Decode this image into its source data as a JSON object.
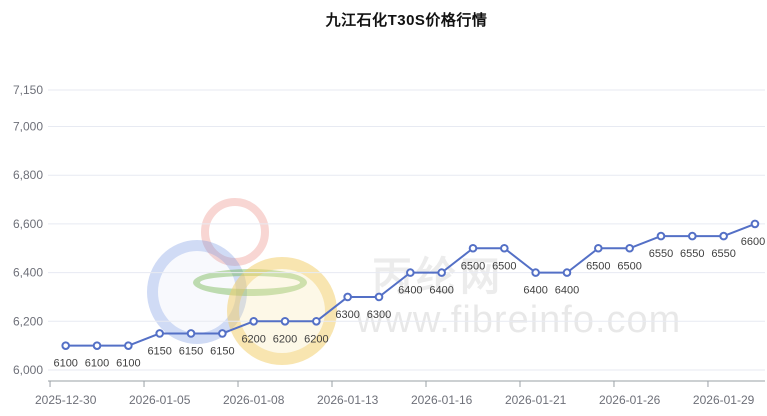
{
  "chart_data": {
    "type": "line",
    "title": "九江石化T30S价格行情",
    "values": [
      6100,
      6100,
      6100,
      6150,
      6150,
      6150,
      6200,
      6200,
      6200,
      6300,
      6300,
      6400,
      6400,
      6500,
      6500,
      6400,
      6400,
      6500,
      6500,
      6550,
      6550,
      6550,
      6600
    ],
    "point_labels_visible": true,
    "x_tick_labels": [
      "2025-12-30",
      "2026-01-05",
      "2026-01-08",
      "2026-01-13",
      "2026-01-16",
      "2026-01-21",
      "2026-01-26",
      "2026-01-29"
    ],
    "x_tick_indices": [
      0,
      3,
      6,
      9,
      12,
      15,
      18,
      21
    ],
    "y_tick_labels": [
      "6,000",
      "6,200",
      "6,400",
      "6,600",
      "6,800",
      "7,000",
      "7,150"
    ],
    "y_tick_values": [
      6000,
      6200,
      6400,
      6600,
      6800,
      7000,
      7150
    ],
    "ylim": [
      5955,
      7150
    ],
    "grid": true,
    "legend_position": "none",
    "line_color": "#5470c6",
    "marker": "hollow-circle",
    "value_label_color": "#404040",
    "axis_label_color": "#6e7079",
    "gridline_color": "#e7eaf2",
    "axis_line_color": "#9aa0a6"
  },
  "watermark": {
    "site_name": "丙纶网",
    "site_url": "www.fibreinfo.com",
    "logo_ring_colors": [
      "#e7766e",
      "#7496e0",
      "#64af3c",
      "#eec658"
    ]
  }
}
